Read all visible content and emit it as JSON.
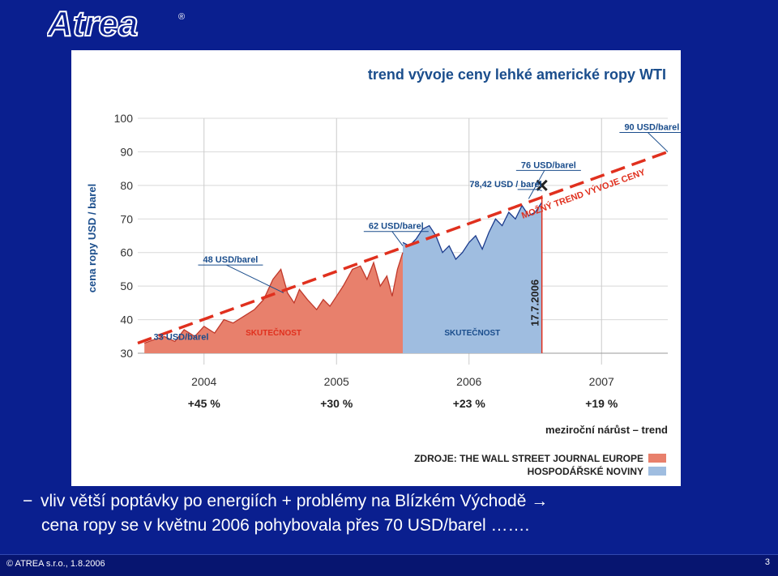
{
  "header": {
    "logo_text": "Atrea",
    "registered_mark": "®"
  },
  "chart_data": {
    "type": "line",
    "title": "trend vývoje ceny lehké americké ropy WTI",
    "ylabel": "cena ropy USD / barel",
    "ylim": [
      30,
      100
    ],
    "yticks": [
      30,
      40,
      50,
      60,
      70,
      80,
      90,
      100
    ],
    "xlim": [
      2003.5,
      2007.5
    ],
    "categories": [
      "2004",
      "2005",
      "2006",
      "2007"
    ],
    "growth_labels": [
      "+45 %",
      "+30 %",
      "+23 %",
      "+19 %"
    ],
    "growth_caption": "meziroční nárůst – trend",
    "series": [
      {
        "name": "SKUTEČNOST",
        "color": "#e8806c",
        "x": [
          2003.55,
          2003.62,
          2003.7,
          2003.78,
          2003.85,
          2003.93,
          2004.0,
          2004.08,
          2004.15,
          2004.22,
          2004.3,
          2004.38,
          2004.45,
          2004.52,
          2004.58,
          2004.63,
          2004.68,
          2004.72,
          2004.78,
          2004.85,
          2004.9,
          2004.95,
          2005.0,
          2005.05,
          2005.12,
          2005.18,
          2005.23,
          2005.28,
          2005.33,
          2005.38,
          2005.42,
          2005.46,
          2005.5
        ],
        "y": [
          33,
          34,
          35,
          33.5,
          37,
          35,
          38,
          36,
          40,
          39,
          41,
          43,
          46,
          52,
          55,
          48,
          45,
          49,
          46,
          43,
          46,
          44,
          47,
          50,
          55,
          56,
          52,
          57,
          50,
          53,
          47,
          55,
          60
        ]
      },
      {
        "name": "SKUTEČNOST",
        "color": "#9fbde0",
        "x": [
          2005.5,
          2005.55,
          2005.6,
          2005.65,
          2005.7,
          2005.75,
          2005.8,
          2005.85,
          2005.9,
          2005.95,
          2006.0,
          2006.05,
          2006.1,
          2006.15,
          2006.2,
          2006.25,
          2006.3,
          2006.35,
          2006.4,
          2006.45,
          2006.5,
          2006.55
        ],
        "y": [
          63,
          62,
          64,
          67,
          68,
          65,
          60,
          62,
          58,
          60,
          63,
          65,
          61,
          66,
          70,
          68,
          72,
          70,
          74,
          71,
          72,
          75
        ]
      }
    ],
    "trend": {
      "name": "MOŽNÝ TREND VÝVOJE CENY",
      "x": [
        2003.5,
        2007.5
      ],
      "y": [
        33,
        90
      ],
      "color": "#e0301e"
    },
    "annotations": [
      {
        "text": "33 USD/barel",
        "x": 2003.6,
        "y": 33
      },
      {
        "text": "48 USD/barel",
        "x": 2004.6,
        "y": 48
      },
      {
        "text": "62 USD/barel",
        "x": 2005.5,
        "y": 62
      },
      {
        "text": "78,42 USD / barel",
        "x": 2006.55,
        "y": 78.42
      },
      {
        "text": "76 USD/barel",
        "x": 2006.45,
        "y": 76
      },
      {
        "text": "90 USD/barel",
        "x": 2007.5,
        "y": 90
      }
    ],
    "event": {
      "text": "17.7.2006",
      "x": 2006.55
    },
    "sources": [
      "ZDROJE: THE WALL STREET JOURNAL EUROPE",
      "HOSPODÁŘSKÉ NOVINY"
    ],
    "source_colors": [
      "#e8806c",
      "#9fbde0"
    ]
  },
  "bullet": {
    "dash": "−",
    "line1": "vliv větší poptávky po energiích +  problémy na Blízkém Východě →",
    "line2": "cena ropy se v květnu  2006 pohybovala přes 70 USD/barel ……."
  },
  "footer": {
    "copyright": "© ATREA s.r.o., 1.8.2006",
    "page_number": "3"
  }
}
